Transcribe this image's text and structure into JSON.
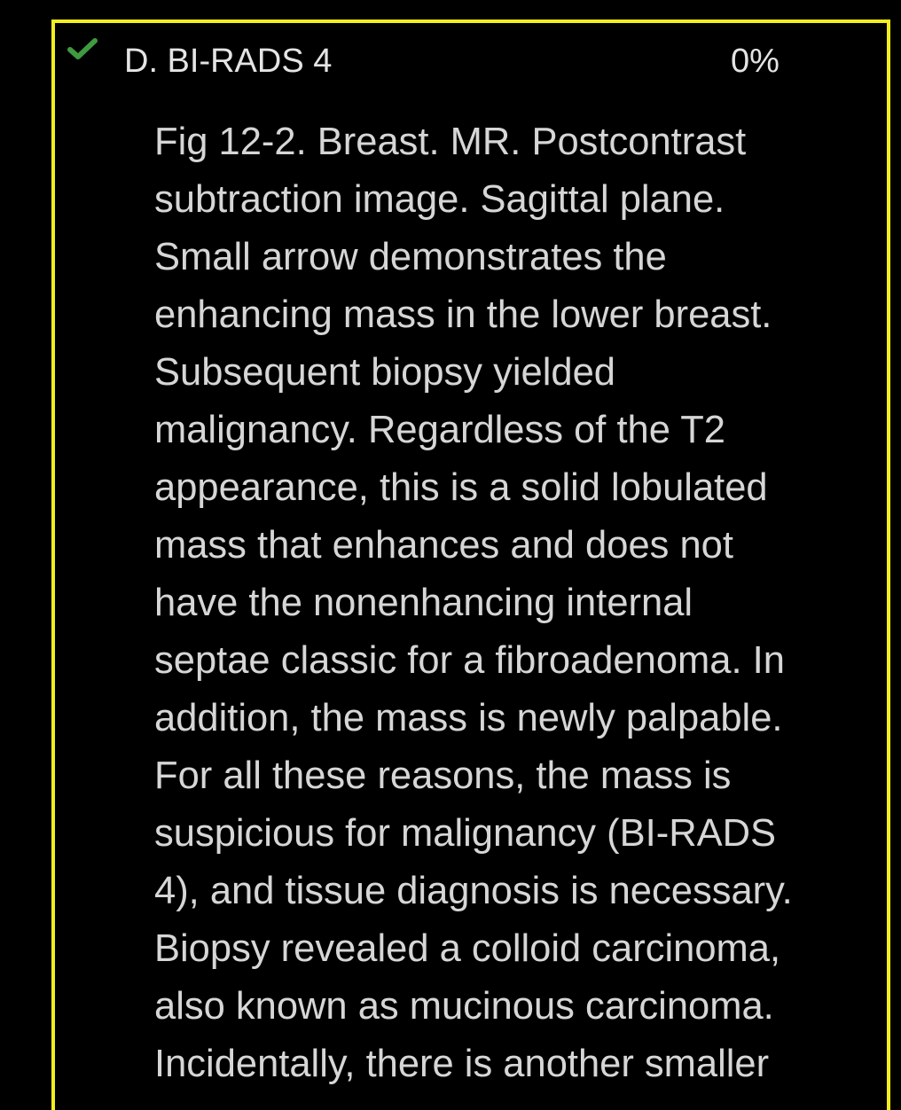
{
  "option": {
    "label": "D. BI-RADS 4",
    "percent": "0%",
    "status_icon": "check-icon",
    "check_color": "#3f9a40",
    "border_color": "#f5ee1c"
  },
  "explanation": {
    "lines": [
      "Fig 12-2. Breast. MR. Postcontrast",
      "subtraction image. Sagittal plane.",
      "Small arrow demonstrates the",
      "enhancing mass in the lower breast.",
      "Subsequent biopsy yielded",
      "malignancy. Regardless of the T2",
      "appearance, this is a solid lobulated",
      "mass that enhances and does not",
      "have the nonenhancing internal",
      "septae classic for a fibroadenoma. In",
      "addition, the mass is newly palpable.",
      "For all these reasons, the mass is",
      "suspicious for malignancy (BI-RADS",
      "4), and tissue diagnosis is necessary.",
      "Biopsy revealed a colloid carcinoma,",
      "also known as mucinous carcinoma.",
      "Incidentally, there is another smaller"
    ]
  }
}
